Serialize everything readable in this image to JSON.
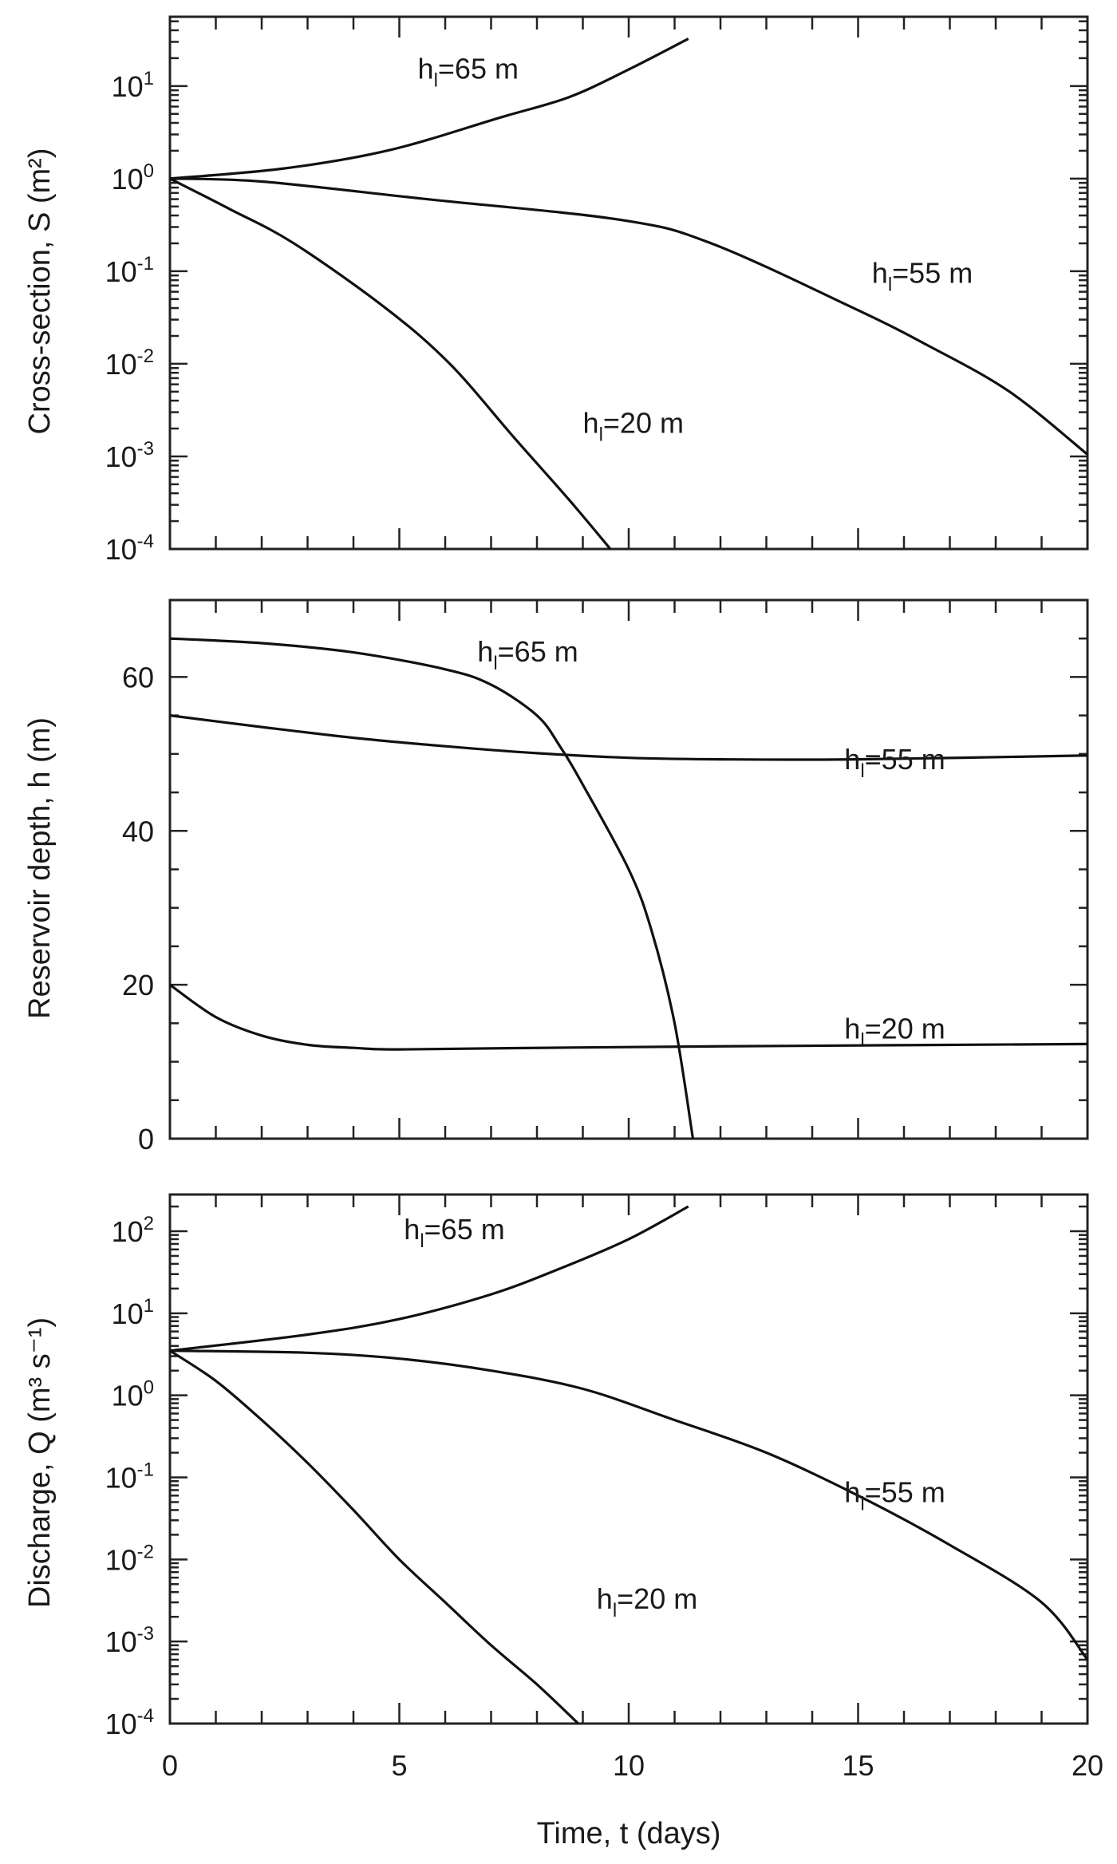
{
  "chart_data": [
    {
      "type": "line",
      "yscale": "log",
      "ylabel": "Cross-section,  S   (m²)",
      "xlim": [
        0,
        20
      ],
      "ylim": [
        0.0001,
        56
      ],
      "yticks": [
        {
          "base": "10",
          "exp": "-4",
          "value": 0.0001
        },
        {
          "base": "10",
          "exp": "-3",
          "value": 0.001
        },
        {
          "base": "10",
          "exp": "-2",
          "value": 0.01
        },
        {
          "base": "10",
          "exp": "-1",
          "value": 0.1
        },
        {
          "base": "10",
          "exp": "0",
          "value": 1
        },
        {
          "base": "10",
          "exp": "1",
          "value": 10
        }
      ],
      "grid": false,
      "series": [
        {
          "name": "hl=65 m",
          "label": {
            "pre": "h",
            "sub": "l",
            "post": "=65 m"
          },
          "label_at": [
            6.5,
            12
          ],
          "x": [
            0,
            2.5,
            4.8,
            7.2,
            8.7,
            10,
            11.3
          ],
          "y": [
            1,
            1.29,
            2.04,
            4.57,
            7.59,
            15.1,
            32.4
          ]
        },
        {
          "name": "hl=55 m",
          "label": {
            "pre": "h",
            "sub": "l",
            "post": "=55 m"
          },
          "label_at": [
            16.4,
            0.075
          ],
          "x": [
            0,
            2,
            5.6,
            9.8,
            11.8,
            14.9,
            16.5,
            18.3,
            20
          ],
          "y": [
            1,
            0.93,
            0.6,
            0.36,
            0.2,
            0.04,
            0.016,
            0.005,
            0.00105
          ]
        },
        {
          "name": "hl=20 m",
          "label": {
            "pre": "h",
            "sub": "l",
            "post": "=20 m"
          },
          "label_at": [
            10.1,
            0.0018
          ],
          "x": [
            0,
            1.3,
            2.7,
            4.7,
            6.1,
            7.5,
            8.7,
            9.6
          ],
          "y": [
            1,
            0.47,
            0.2,
            0.04,
            0.01,
            0.0016,
            0.00034,
            0.0001
          ]
        }
      ]
    },
    {
      "type": "line",
      "yscale": "linear",
      "ylabel": "Reservoir  depth,   h   (m)",
      "xlim": [
        0,
        20
      ],
      "ylim": [
        0,
        70
      ],
      "yticks": [
        {
          "label": "0",
          "value": 0
        },
        {
          "label": "20",
          "value": 20
        },
        {
          "label": "40",
          "value": 40
        },
        {
          "label": "60",
          "value": 60
        }
      ],
      "grid": false,
      "series": [
        {
          "name": "hl=65 m",
          "label": {
            "pre": "h",
            "sub": "l",
            "post": "=65 m"
          },
          "label_at": [
            7.8,
            62
          ],
          "x": [
            0,
            2,
            4,
            6,
            7,
            8,
            8.5,
            9,
            10,
            10.5,
            11,
            11.4
          ],
          "y": [
            65,
            64.4,
            63.2,
            61,
            59,
            55,
            51,
            46,
            35,
            27,
            15,
            0
          ]
        },
        {
          "name": "hl=55 m",
          "label": {
            "pre": "h",
            "sub": "l",
            "post": "=55 m"
          },
          "label_at": [
            15.8,
            48
          ],
          "x": [
            0,
            2,
            4,
            6,
            8,
            10,
            12,
            15,
            20
          ],
          "y": [
            55,
            53.5,
            52.1,
            51,
            50.1,
            49.5,
            49.3,
            49.3,
            49.8
          ]
        },
        {
          "name": "hl=20 m",
          "label": {
            "pre": "h",
            "sub": "l",
            "post": "=20 m"
          },
          "label_at": [
            15.8,
            13
          ]
        },
        {
          "x": [
            0,
            1,
            2,
            3,
            4,
            5,
            8,
            12,
            20
          ],
          "y": [
            20,
            15.8,
            13.4,
            12.2,
            11.8,
            11.6,
            11.8,
            12,
            12.3
          ]
        }
      ]
    },
    {
      "type": "line",
      "yscale": "log",
      "ylabel": "Discharge,   Q   (m³ s⁻¹)",
      "xlabel": "Time,  t  (days)",
      "xlim": [
        0,
        20
      ],
      "ylim": [
        0.0001,
        280
      ],
      "xticks": [
        "0",
        "5",
        "10",
        "15",
        "20"
      ],
      "yticks": [
        {
          "base": "10",
          "exp": "-4",
          "value": 0.0001
        },
        {
          "base": "10",
          "exp": "-3",
          "value": 0.001
        },
        {
          "base": "10",
          "exp": "-2",
          "value": 0.01
        },
        {
          "base": "10",
          "exp": "-1",
          "value": 0.1
        },
        {
          "base": "10",
          "exp": "0",
          "value": 1
        },
        {
          "base": "10",
          "exp": "1",
          "value": 10
        },
        {
          "base": "10",
          "exp": "2",
          "value": 100
        }
      ],
      "grid": false,
      "series": [
        {
          "name": "hl=65 m",
          "label": {
            "pre": "h",
            "sub": "l",
            "post": "=65 m"
          },
          "label_at": [
            6.2,
            80
          ],
          "x": [
            0,
            3,
            5,
            7,
            8.5,
            10,
            11.3
          ],
          "y": [
            3.5,
            5.5,
            8.5,
            17,
            35,
            80,
            200
          ]
        },
        {
          "name": "hl=55 m",
          "label": {
            "pre": "h",
            "sub": "l",
            "post": "=55 m"
          },
          "label_at": [
            15.8,
            0.05
          ],
          "x": [
            0,
            3,
            5,
            7,
            9,
            11,
            13,
            15,
            17,
            19,
            20
          ],
          "y": [
            3.5,
            3.3,
            2.8,
            2,
            1.2,
            0.5,
            0.2,
            0.06,
            0.015,
            0.003,
            0.0006
          ]
        },
        {
          "name": "hl=20 m",
          "label": {
            "pre": "h",
            "sub": "l",
            "post": "=20 m"
          },
          "label_at": [
            10.4,
            0.0025
          ],
          "x": [
            0,
            1,
            2,
            3,
            4,
            5,
            6,
            7,
            8,
            8.9
          ],
          "y": [
            3.5,
            1.5,
            0.5,
            0.15,
            0.04,
            0.01,
            0.003,
            0.0009,
            0.0003,
            0.0001
          ]
        }
      ]
    }
  ]
}
